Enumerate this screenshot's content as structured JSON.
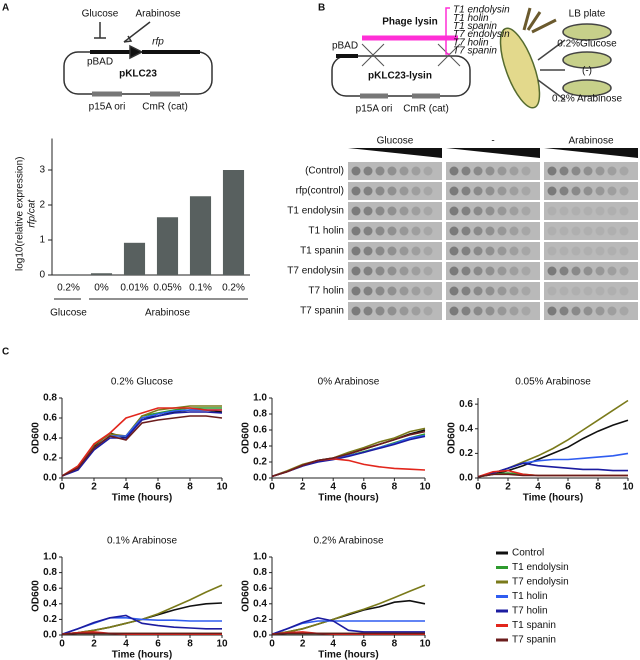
{
  "panel_labels": [
    "A",
    "B",
    "C"
  ],
  "diagram_a": {
    "inhibitor": "Glucose",
    "inducer": "Arabinose",
    "promoter": "pBAD",
    "gene": "rfp",
    "plasmid": "pKLC23",
    "origin": "p15A ori",
    "marker": "CmR (cat)"
  },
  "diagram_b": {
    "promoter": "pBAD",
    "insert": "Phage lysin",
    "genes": [
      "T1 endolysin",
      "T1 holin",
      "T1 spanin",
      "T7 endolysin",
      "T7 holin",
      "T7 spanin"
    ],
    "plasmid": "pKLC23-lysin",
    "origin": "p15A ori",
    "marker": "CmR (cat)",
    "plate": "LB plate",
    "plate_conditions": [
      "0.2%Glucose",
      "(-)",
      "0.2% Arabinose"
    ]
  },
  "plate_assay": {
    "conditions": [
      "Glucose",
      "-",
      "Arabinose"
    ],
    "rows": [
      "(Control)",
      "rfp(control)",
      "T1 endolysin",
      "T1 holin",
      "T1 spanin",
      "T7 endolysin",
      "T7 holin",
      "T7 spanin"
    ]
  },
  "legend": [
    {
      "name": "Control",
      "color": "#111111"
    },
    {
      "name": "T1 endolysin",
      "color": "#2e9a2e"
    },
    {
      "name": "T7 endolysin",
      "color": "#7a7a1a"
    },
    {
      "name": "T1 holin",
      "color": "#2f5cf0"
    },
    {
      "name": "T7 holin",
      "color": "#1c1ca0"
    },
    {
      "name": "T1 spanin",
      "color": "#e2261c"
    },
    {
      "name": "T7 spanin",
      "color": "#6b1c1c"
    }
  ],
  "chart_data": [
    {
      "type": "bar",
      "y_label": "log10(relative expression)",
      "y_label_2": "rfp/cat",
      "categories": [
        "0.2%",
        "0%",
        "0.01%",
        "0.05%",
        "0.1%",
        "0.2%"
      ],
      "values": [
        0.02,
        0.05,
        0.92,
        1.65,
        2.25,
        3.0
      ],
      "color": "#58605f",
      "ylim": [
        0,
        3.5
      ],
      "yticks": [
        0,
        1,
        2,
        3
      ],
      "group_labels": [
        "Glucose",
        "Arabinose"
      ]
    },
    {
      "type": "line",
      "title": "0.2% Glucose",
      "x_label": "Time (hours)",
      "y_label": "OD600",
      "x": [
        0,
        1,
        2,
        3,
        4,
        5,
        6,
        7,
        8,
        9,
        10
      ],
      "xlim": [
        0,
        10
      ],
      "xticks": [
        0,
        2,
        4,
        6,
        8,
        10
      ],
      "ylim": [
        0,
        0.8
      ],
      "yticks": [
        {
          "value": 0,
          "label": "0.0"
        },
        0.2,
        0.4,
        0.6,
        0.8
      ],
      "series": [
        {
          "values": [
            0.02,
            0.1,
            0.32,
            0.45,
            0.4,
            0.6,
            0.62,
            0.66,
            0.68,
            0.68,
            0.66
          ]
        },
        {
          "values": [
            0.02,
            0.1,
            0.3,
            0.42,
            0.42,
            0.62,
            0.65,
            0.68,
            0.7,
            0.7,
            0.7
          ]
        },
        {
          "values": [
            0.02,
            0.12,
            0.33,
            0.44,
            0.42,
            0.62,
            0.68,
            0.7,
            0.72,
            0.72,
            0.72
          ]
        },
        {
          "values": [
            0.02,
            0.1,
            0.3,
            0.42,
            0.42,
            0.6,
            0.64,
            0.67,
            0.68,
            0.68,
            0.68
          ]
        },
        {
          "values": [
            0.02,
            0.08,
            0.28,
            0.4,
            0.4,
            0.58,
            0.62,
            0.65,
            0.66,
            0.66,
            0.65
          ]
        },
        {
          "values": [
            0.02,
            0.12,
            0.34,
            0.45,
            0.6,
            0.65,
            0.7,
            0.7,
            0.7,
            0.68,
            0.68
          ]
        },
        {
          "values": [
            0.02,
            0.1,
            0.3,
            0.42,
            0.38,
            0.55,
            0.58,
            0.6,
            0.62,
            0.62,
            0.6
          ]
        }
      ]
    },
    {
      "type": "line",
      "title": "0% Arabinose",
      "x_label": "Time (hours)",
      "y_label": "OD600",
      "x": [
        0,
        1,
        2,
        3,
        4,
        5,
        6,
        7,
        8,
        9,
        10
      ],
      "xlim": [
        0,
        10
      ],
      "xticks": [
        0,
        2,
        4,
        6,
        8,
        10
      ],
      "ylim": [
        0,
        1
      ],
      "yticks": [
        {
          "value": 0,
          "label": "0.0"
        },
        0.2,
        0.4,
        0.6,
        0.8,
        {
          "value": 1,
          "label": "1.0"
        }
      ],
      "series": [
        {
          "values": [
            0.02,
            0.08,
            0.16,
            0.22,
            0.25,
            0.3,
            0.36,
            0.42,
            0.48,
            0.55,
            0.6
          ]
        },
        {
          "values": [
            0.02,
            0.08,
            0.16,
            0.22,
            0.24,
            0.28,
            0.33,
            0.38,
            0.44,
            0.5,
            0.55
          ]
        },
        {
          "values": [
            0.02,
            0.09,
            0.17,
            0.22,
            0.25,
            0.32,
            0.38,
            0.45,
            0.5,
            0.58,
            0.62
          ]
        },
        {
          "values": [
            0.02,
            0.08,
            0.15,
            0.22,
            0.24,
            0.28,
            0.32,
            0.38,
            0.43,
            0.5,
            0.53
          ]
        },
        {
          "values": [
            0.02,
            0.08,
            0.15,
            0.2,
            0.23,
            0.27,
            0.32,
            0.37,
            0.42,
            0.48,
            0.52
          ]
        },
        {
          "values": [
            0.02,
            0.08,
            0.16,
            0.22,
            0.24,
            0.22,
            0.17,
            0.14,
            0.12,
            0.11,
            0.1
          ]
        },
        {
          "values": [
            0.02,
            0.08,
            0.16,
            0.22,
            0.25,
            0.3,
            0.36,
            0.42,
            0.48,
            0.54,
            0.58
          ]
        }
      ]
    },
    {
      "type": "line",
      "title": "0.05% Arabinose",
      "x_label": "Time (hours)",
      "y_label": "OD600",
      "x": [
        0,
        1,
        2,
        3,
        4,
        5,
        6,
        7,
        8,
        9,
        10
      ],
      "xlim": [
        0,
        10
      ],
      "xticks": [
        0,
        2,
        4,
        6,
        8,
        10
      ],
      "ylim": [
        0,
        0.65
      ],
      "yticks": [
        {
          "value": 0,
          "label": "0.0"
        },
        0.2,
        0.4,
        0.6
      ],
      "series": [
        {
          "values": [
            0.01,
            0.03,
            0.06,
            0.1,
            0.15,
            0.2,
            0.25,
            0.32,
            0.38,
            0.43,
            0.47
          ]
        },
        {
          "values": [
            0.01,
            0.03,
            0.04,
            0.03,
            0.02,
            0.02,
            0.02,
            0.02,
            0.02,
            0.02,
            0.02
          ]
        },
        {
          "values": [
            0.01,
            0.04,
            0.08,
            0.13,
            0.18,
            0.24,
            0.31,
            0.39,
            0.47,
            0.55,
            0.63
          ]
        },
        {
          "values": [
            0.01,
            0.04,
            0.08,
            0.12,
            0.14,
            0.15,
            0.15,
            0.16,
            0.17,
            0.18,
            0.2
          ]
        },
        {
          "values": [
            0.01,
            0.04,
            0.08,
            0.12,
            0.1,
            0.09,
            0.08,
            0.07,
            0.07,
            0.06,
            0.06
          ]
        },
        {
          "values": [
            0.01,
            0.05,
            0.06,
            0.03,
            0.02,
            0.02,
            0.02,
            0.02,
            0.02,
            0.02,
            0.02
          ]
        },
        {
          "values": [
            0.01,
            0.03,
            0.03,
            0.02,
            0.02,
            0.02,
            0.02,
            0.02,
            0.02,
            0.02,
            0.02
          ]
        }
      ]
    },
    {
      "type": "line",
      "title": "0.1% Arabinose",
      "x_label": "Time (hours)",
      "y_label": "OD600",
      "x": [
        0,
        1,
        2,
        3,
        4,
        5,
        6,
        7,
        8,
        9,
        10
      ],
      "xlim": [
        0,
        10
      ],
      "xticks": [
        0,
        2,
        4,
        6,
        8,
        10
      ],
      "ylim": [
        0,
        1
      ],
      "yticks": [
        {
          "value": 0,
          "label": "0.0"
        },
        0.2,
        0.4,
        0.6,
        0.8,
        {
          "value": 1,
          "label": "1.0"
        }
      ],
      "series": [
        {
          "values": [
            0.01,
            0.03,
            0.06,
            0.1,
            0.15,
            0.2,
            0.26,
            0.32,
            0.37,
            0.4,
            0.41
          ]
        },
        {
          "values": [
            0.01,
            0.02,
            0.02,
            0.02,
            0.02,
            0.02,
            0.02,
            0.02,
            0.02,
            0.02,
            0.02
          ]
        },
        {
          "values": [
            0.01,
            0.03,
            0.06,
            0.1,
            0.15,
            0.2,
            0.27,
            0.36,
            0.45,
            0.55,
            0.64
          ]
        },
        {
          "values": [
            0.01,
            0.08,
            0.15,
            0.22,
            0.22,
            0.2,
            0.19,
            0.19,
            0.18,
            0.18,
            0.18
          ]
        },
        {
          "values": [
            0.01,
            0.08,
            0.16,
            0.22,
            0.25,
            0.15,
            0.12,
            0.1,
            0.09,
            0.08,
            0.08
          ]
        },
        {
          "values": [
            0.01,
            0.03,
            0.04,
            0.02,
            0.01,
            0.01,
            0.01,
            0.01,
            0.01,
            0.01,
            0.01
          ]
        },
        {
          "values": [
            0.01,
            0.02,
            0.02,
            0.02,
            0.02,
            0.02,
            0.02,
            0.02,
            0.02,
            0.02,
            0.02
          ]
        }
      ]
    },
    {
      "type": "line",
      "title": "0.2% Arabinose",
      "x_label": "Time (hours)",
      "y_label": "OD600",
      "x": [
        0,
        1,
        2,
        3,
        4,
        5,
        6,
        7,
        8,
        9,
        10
      ],
      "xlim": [
        0,
        10
      ],
      "xticks": [
        0,
        2,
        4,
        6,
        8,
        10
      ],
      "ylim": [
        0,
        1
      ],
      "yticks": [
        {
          "value": 0,
          "label": "0.0"
        },
        0.2,
        0.4,
        0.6,
        0.8,
        {
          "value": 1,
          "label": "1.0"
        }
      ],
      "series": [
        {
          "values": [
            0.01,
            0.04,
            0.08,
            0.14,
            0.2,
            0.26,
            0.32,
            0.36,
            0.42,
            0.44,
            0.4
          ]
        },
        {
          "values": [
            0.01,
            0.02,
            0.02,
            0.02,
            0.02,
            0.02,
            0.02,
            0.02,
            0.02,
            0.02,
            0.02
          ]
        },
        {
          "values": [
            0.01,
            0.04,
            0.08,
            0.14,
            0.2,
            0.27,
            0.33,
            0.4,
            0.48,
            0.56,
            0.64
          ]
        },
        {
          "values": [
            0.01,
            0.08,
            0.15,
            0.18,
            0.18,
            0.18,
            0.18,
            0.18,
            0.18,
            0.18,
            0.18
          ]
        },
        {
          "values": [
            0.01,
            0.08,
            0.16,
            0.22,
            0.18,
            0.06,
            0.04,
            0.04,
            0.04,
            0.04,
            0.04
          ]
        },
        {
          "values": [
            0.01,
            0.03,
            0.04,
            0.02,
            0.01,
            0.01,
            0.01,
            0.01,
            0.01,
            0.01,
            0.01
          ]
        },
        {
          "values": [
            0.01,
            0.02,
            0.02,
            0.02,
            0.02,
            0.02,
            0.02,
            0.02,
            0.02,
            0.02,
            0.02
          ]
        }
      ]
    }
  ]
}
